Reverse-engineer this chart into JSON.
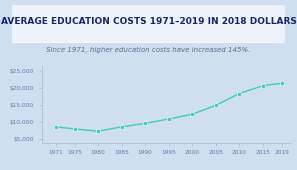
{
  "title": "AVERAGE EDUCATION COSTS 1971–2019 IN 2018 DOLLARS",
  "subtitle": "Since 1971, higher education costs have increased 145%.",
  "x": [
    1971,
    1975,
    1980,
    1985,
    1990,
    1995,
    2000,
    2005,
    2010,
    2015,
    2019
  ],
  "y": [
    8700,
    8100,
    7400,
    8700,
    9700,
    11000,
    12400,
    15000,
    18500,
    20800,
    21500
  ],
  "ylim": [
    4000,
    27000
  ],
  "yticks": [
    5000,
    10000,
    15000,
    20000,
    25000
  ],
  "ytick_labels": [
    "$5,000",
    "$10,000",
    "$15,000",
    "$20,000",
    "$25,000"
  ],
  "xticks": [
    1971,
    1975,
    1980,
    1985,
    1990,
    1995,
    2000,
    2005,
    2010,
    2015,
    2019
  ],
  "xlim": [
    1968,
    2021
  ],
  "line_color": "#3ecfb2",
  "marker_color": "#3ecfb2",
  "bg_color": "#cfdff0",
  "plot_bg_color": "#cfdff0",
  "title_box_color": "#eef3fb",
  "title_color": "#1a2562",
  "subtitle_color": "#5a6a8a",
  "axis_color": "#aabbcc",
  "tick_color": "#6677aa",
  "title_fontsize": 6.5,
  "subtitle_fontsize": 5.0,
  "tick_fontsize": 4.2
}
